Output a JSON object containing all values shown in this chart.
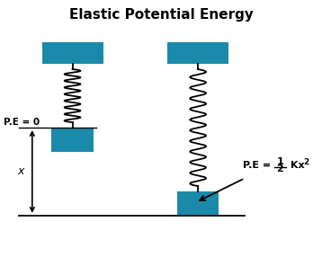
{
  "title": "Elastic Potential Energy",
  "title_fontsize": 11,
  "title_fontweight": "bold",
  "bg_color": "#ffffff",
  "box_color": "#1a8aaa",
  "line_color": "#000000",
  "fig_width": 3.58,
  "fig_height": 2.96,
  "pe0_label": "P.E = 0",
  "x_label": "x",
  "arrow_color": "#000000"
}
